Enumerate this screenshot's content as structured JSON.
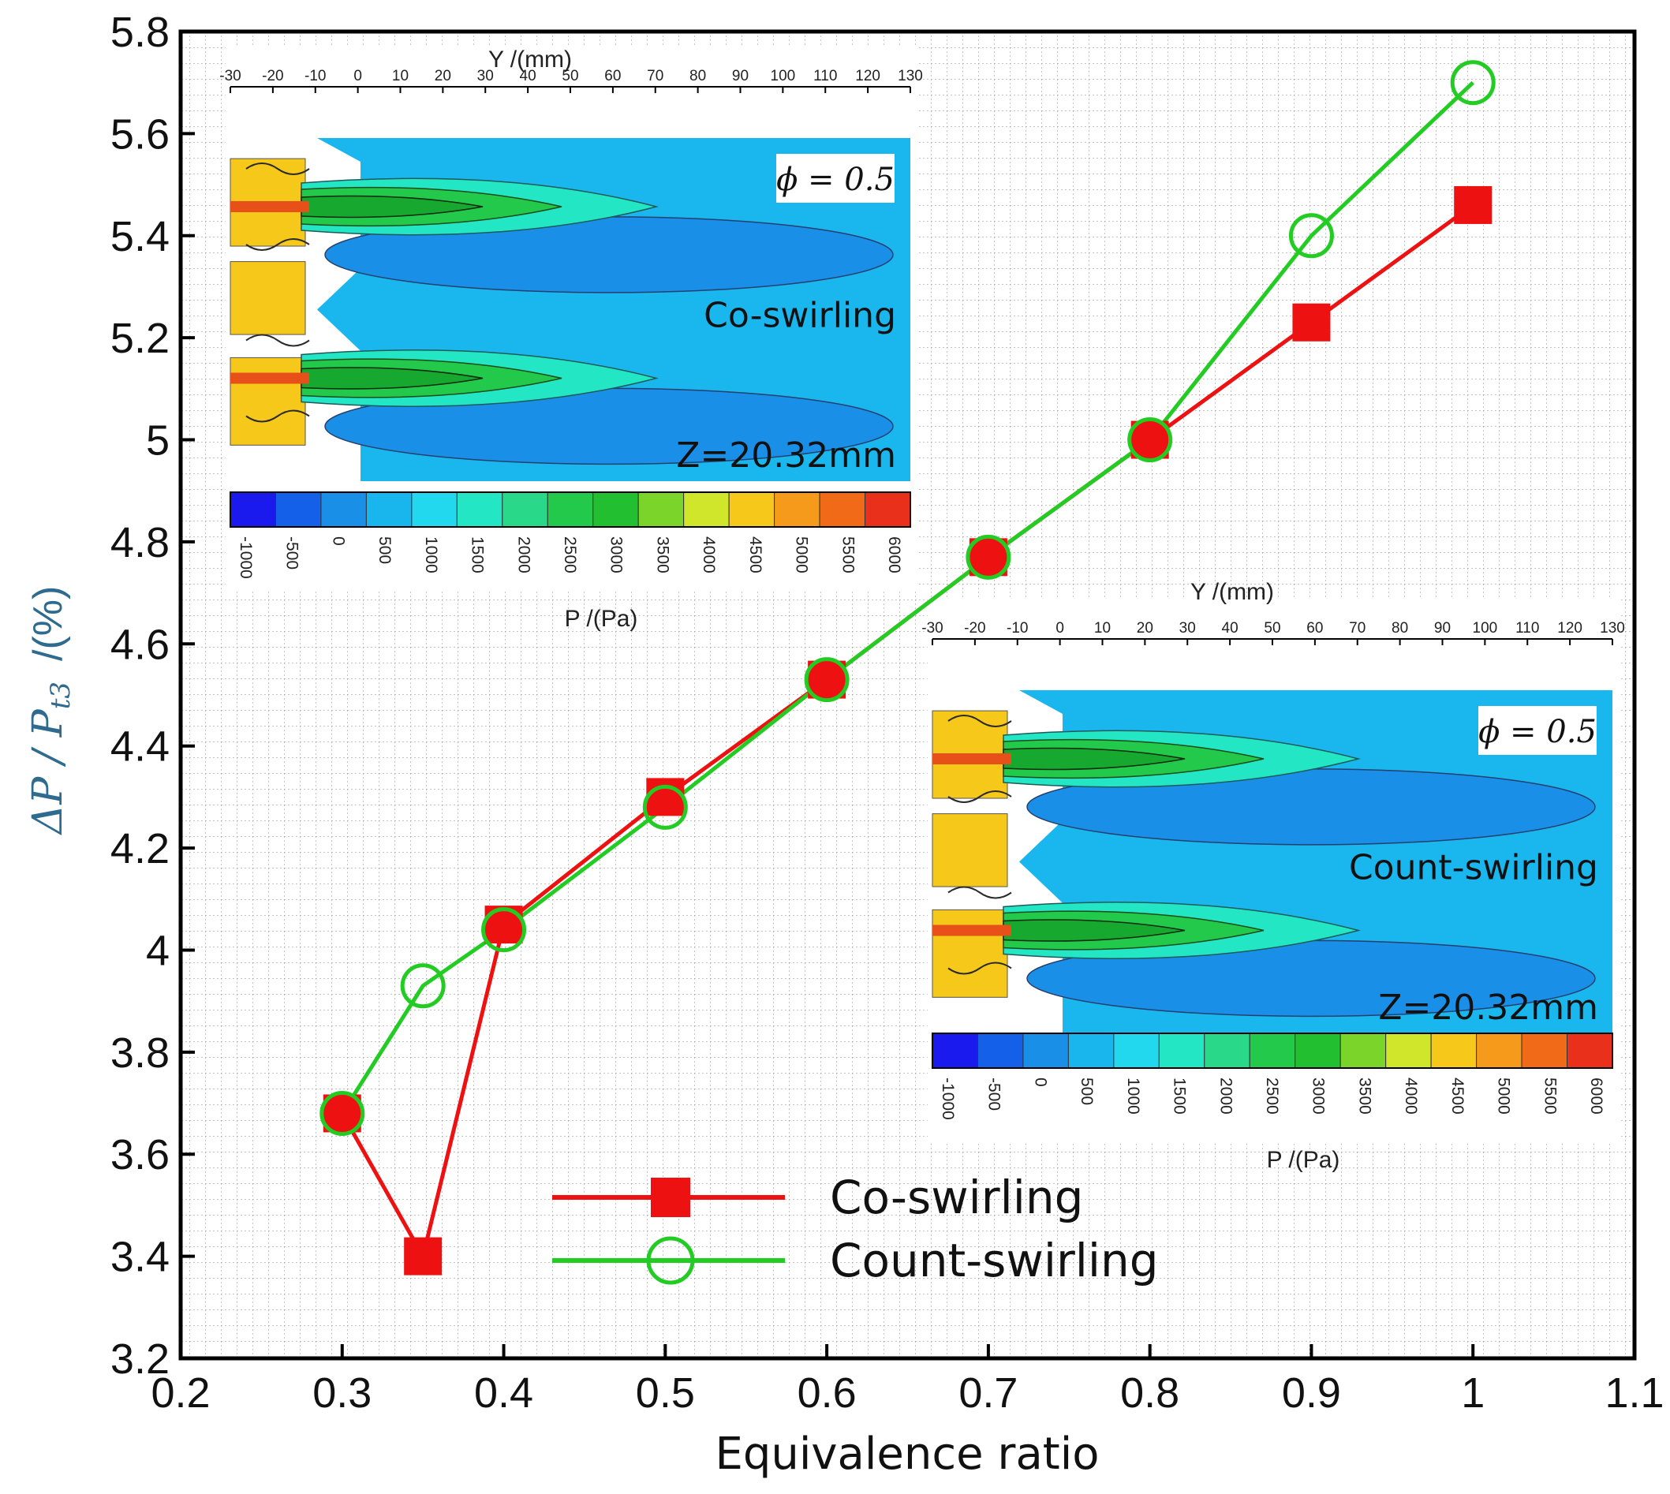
{
  "chart_data": {
    "type": "line",
    "xlabel": "Equivalence ratio",
    "ylabel": "ΔP / P",
    "ylabel_sub": "t3",
    "ylabel_unit": "/(%)",
    "xlim": [
      0.2,
      1.1
    ],
    "ylim": [
      3.2,
      5.8
    ],
    "xticks": [
      "0.2",
      "0.3",
      "0.4",
      "0.5",
      "0.6",
      "0.7",
      "0.8",
      "0.9",
      "1",
      "1.1"
    ],
    "yticks": [
      "3.2",
      "3.4",
      "3.6",
      "3.8",
      "4",
      "4.2",
      "4.4",
      "4.6",
      "4.8",
      "5",
      "5.2",
      "5.4",
      "5.6",
      "5.8"
    ],
    "grid": true,
    "legend_position": "bottom-center",
    "series": [
      {
        "name": "Co-swirling",
        "color": "#ee1111",
        "marker": "filled-square",
        "x": [
          0.3,
          0.35,
          0.4,
          0.5,
          0.6,
          0.7,
          0.8,
          0.9,
          1.0
        ],
        "y": [
          3.68,
          3.4,
          4.05,
          4.3,
          4.53,
          4.77,
          5.0,
          5.23,
          5.46
        ]
      },
      {
        "name": "Count-swirling",
        "color": "#22cc22",
        "marker": "hollow-circle",
        "x": [
          0.3,
          0.35,
          0.4,
          0.5,
          0.6,
          0.7,
          0.8,
          0.9,
          1.0
        ],
        "y": [
          3.68,
          3.93,
          4.04,
          4.28,
          4.53,
          4.77,
          5.0,
          5.4,
          5.7
        ]
      }
    ],
    "insets": [
      {
        "case": "Co-swirling",
        "phi": "ϕ = 0.5",
        "z_label": "Z=20.32mm",
        "y_axis_title": "Y /(mm)",
        "y_ticks": [
          "-30",
          "-20",
          "-10",
          "0",
          "10",
          "20",
          "30",
          "40",
          "50",
          "60",
          "70",
          "80",
          "90",
          "100",
          "110",
          "120",
          "130"
        ],
        "colorbar_title": "P /(Pa)",
        "colorbar_ticks": [
          "-1000",
          "-500",
          "0",
          "500",
          "1000",
          "1500",
          "2000",
          "2500",
          "3000",
          "3500",
          "4000",
          "4500",
          "5000",
          "5500",
          "6000"
        ]
      },
      {
        "case": "Count-swirling",
        "phi": "ϕ = 0.5",
        "z_label": "Z=20.32mm",
        "y_axis_title": "Y /(mm)",
        "y_ticks": [
          "-30",
          "-20",
          "-10",
          "0",
          "10",
          "20",
          "30",
          "40",
          "50",
          "60",
          "70",
          "80",
          "90",
          "100",
          "110",
          "120",
          "130"
        ],
        "colorbar_title": "P /(Pa)",
        "colorbar_ticks": [
          "-1000",
          "-500",
          "0",
          "500",
          "1000",
          "1500",
          "2000",
          "2500",
          "3000",
          "3500",
          "4000",
          "4500",
          "5000",
          "5500",
          "6000"
        ]
      }
    ],
    "colormap": [
      "#1a1aee",
      "#1560e8",
      "#1a8fe8",
      "#19b6ee",
      "#22d8ee",
      "#22e6c4",
      "#2ad88a",
      "#22c94a",
      "#22c030",
      "#7ad42a",
      "#cfe62a",
      "#f5c81a",
      "#f59a1a",
      "#f06a18",
      "#e8301a"
    ]
  }
}
